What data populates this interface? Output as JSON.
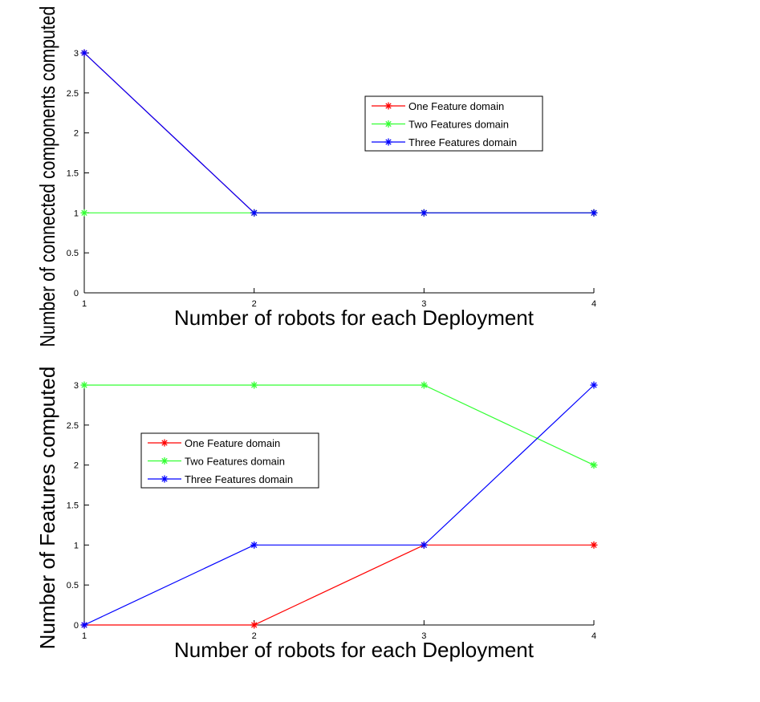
{
  "figure": {
    "background": "#ffffff"
  },
  "chart_data": [
    {
      "type": "line",
      "title": "",
      "xlabel": "Number of robots for each Deployment",
      "ylabel": "Number of connected components computed",
      "x": [
        1,
        2,
        3,
        4
      ],
      "xlim": [
        1,
        4
      ],
      "ylim": [
        0,
        3
      ],
      "xticks": [
        "1",
        "2",
        "3",
        "4"
      ],
      "yticks": [
        "0",
        "0.5",
        "1",
        "1.5",
        "2",
        "2.5",
        "3"
      ],
      "grid": false,
      "legend_position": "top-right",
      "marker": "asterisk",
      "series": [
        {
          "name": "One Feature domain",
          "color": "#ff0000",
          "values": [
            3,
            1,
            1,
            1
          ]
        },
        {
          "name": "Two Features domain",
          "color": "#33ff33",
          "values": [
            1,
            1,
            1,
            1
          ]
        },
        {
          "name": "Three Features domain",
          "color": "#0000ff",
          "values": [
            3,
            1,
            1,
            1
          ]
        }
      ]
    },
    {
      "type": "line",
      "title": "",
      "xlabel": "Number of robots for each Deployment",
      "ylabel": "Number of Features computed",
      "x": [
        1,
        2,
        3,
        4
      ],
      "xlim": [
        1,
        4
      ],
      "ylim": [
        0,
        3
      ],
      "xticks": [
        "1",
        "2",
        "3",
        "4"
      ],
      "yticks": [
        "0",
        "0.5",
        "1",
        "1.5",
        "2",
        "2.5",
        "3"
      ],
      "grid": false,
      "legend_position": "middle-left",
      "marker": "asterisk",
      "series": [
        {
          "name": "One Feature domain",
          "color": "#ff0000",
          "values": [
            0,
            0,
            1,
            1
          ]
        },
        {
          "name": "Two Features domain",
          "color": "#33ff33",
          "values": [
            3,
            3,
            3,
            2
          ]
        },
        {
          "name": "Three Features domain",
          "color": "#0000ff",
          "values": [
            0,
            1,
            1,
            3
          ]
        }
      ]
    }
  ]
}
